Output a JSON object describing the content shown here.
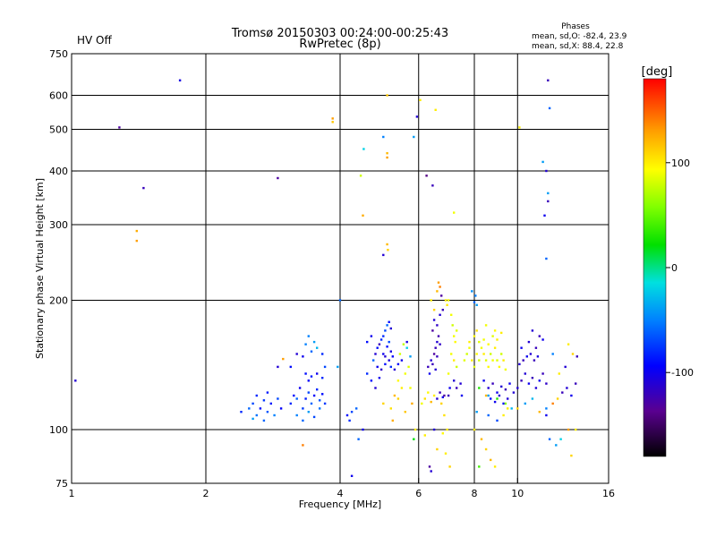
{
  "header": {
    "title_line1": "Tromsø 20150303 00:24:00-00:25:43",
    "title_line2": "RwPretec (8p)",
    "status": "HV Off",
    "status_color": "#cc0000",
    "phase_title": "Phases",
    "phase_o": "mean, sd,O: -82.4, 23.9",
    "phase_x": "mean, sd,X:  88.4, 22.8"
  },
  "colorbar": {
    "label": "[deg]",
    "range": [
      -180,
      180
    ],
    "ticks": [
      {
        "value": 100,
        "label": "100"
      },
      {
        "value": 0,
        "label": "0"
      },
      {
        "value": -100,
        "label": "-100"
      }
    ]
  },
  "chart_data": {
    "type": "scatter",
    "xlabel": "Frequency [MHz]",
    "ylabel": "Stationary phase Virtual Height [km]",
    "x_scale": "log",
    "y_scale": "log",
    "xlim": [
      1,
      16
    ],
    "ylim": [
      75,
      750
    ],
    "x_ticks": [
      {
        "value": 1,
        "label": "1"
      },
      {
        "value": 2,
        "label": "2"
      },
      {
        "value": 4,
        "label": "4"
      },
      {
        "value": 6,
        "label": "6"
      },
      {
        "value": 8,
        "label": "8"
      },
      {
        "value": 10,
        "label": "10"
      },
      {
        "value": 16,
        "label": "16"
      }
    ],
    "y_ticks": [
      {
        "value": 75,
        "label": "75"
      },
      {
        "value": 100,
        "label": "100"
      },
      {
        "value": 200,
        "label": "200"
      },
      {
        "value": 300,
        "label": "300"
      },
      {
        "value": 400,
        "label": "400"
      },
      {
        "value": 500,
        "label": "500"
      },
      {
        "value": 600,
        "label": "600"
      },
      {
        "value": 750,
        "label": "750"
      }
    ],
    "x_grid": [
      2,
      4,
      6,
      8,
      10
    ],
    "y_grid": [
      100,
      200,
      300,
      400,
      500,
      600
    ],
    "points": [
      [
        1.02,
        130,
        -110
      ],
      [
        1.28,
        505,
        -130
      ],
      [
        1.45,
        365,
        -120
      ],
      [
        1.75,
        650,
        -105
      ],
      [
        1.4,
        290,
        125
      ],
      [
        1.4,
        275,
        130
      ],
      [
        2.9,
        385,
        -130
      ],
      [
        3.85,
        530,
        130
      ],
      [
        3.85,
        520,
        115
      ],
      [
        4.52,
        450,
        -20
      ],
      [
        4.45,
        390,
        80
      ],
      [
        4.5,
        315,
        125
      ],
      [
        5.1,
        600,
        115
      ],
      [
        5.1,
        440,
        120
      ],
      [
        5.1,
        430,
        130
      ],
      [
        5.0,
        480,
        -50
      ],
      [
        5.1,
        270,
        120
      ],
      [
        5.12,
        262,
        110
      ],
      [
        5.0,
        255,
        -110
      ],
      [
        5.85,
        480,
        -40
      ],
      [
        5.95,
        535,
        -110
      ],
      [
        6.05,
        585,
        100
      ],
      [
        6.25,
        390,
        -140
      ],
      [
        6.45,
        370,
        -120
      ],
      [
        6.55,
        555,
        100
      ],
      [
        7.2,
        320,
        90
      ],
      [
        10.1,
        505,
        100
      ],
      [
        11.7,
        650,
        -120
      ],
      [
        11.8,
        560,
        -60
      ],
      [
        11.4,
        420,
        -40
      ],
      [
        11.6,
        400,
        -110
      ],
      [
        11.7,
        355,
        -40
      ],
      [
        11.7,
        340,
        -120
      ],
      [
        11.5,
        315,
        -100
      ],
      [
        11.6,
        250,
        -60
      ],
      [
        2.4,
        110,
        -80
      ],
      [
        2.5,
        112,
        -60
      ],
      [
        2.55,
        115,
        -70
      ],
      [
        2.6,
        108,
        -55
      ],
      [
        2.65,
        112,
        -90
      ],
      [
        2.7,
        117,
        -75
      ],
      [
        2.75,
        110,
        -65
      ],
      [
        2.8,
        115,
        -85
      ],
      [
        2.85,
        108,
        -50
      ],
      [
        2.6,
        120,
        -80
      ],
      [
        2.7,
        105,
        -60
      ],
      [
        2.9,
        118,
        -70
      ],
      [
        2.95,
        112,
        -95
      ],
      [
        2.55,
        106,
        -40
      ],
      [
        2.75,
        122,
        -85
      ],
      [
        3.1,
        115,
        -80
      ],
      [
        3.15,
        120,
        -90
      ],
      [
        3.2,
        118,
        -60
      ],
      [
        3.25,
        125,
        -100
      ],
      [
        3.3,
        112,
        -75
      ],
      [
        3.35,
        118,
        -85
      ],
      [
        3.4,
        122,
        -70
      ],
      [
        3.45,
        115,
        -60
      ],
      [
        3.5,
        120,
        -95
      ],
      [
        3.55,
        124,
        -80
      ],
      [
        3.6,
        117,
        -65
      ],
      [
        3.65,
        121,
        -90
      ],
      [
        3.7,
        115,
        -75
      ],
      [
        3.2,
        108,
        -50
      ],
      [
        3.3,
        105,
        -60
      ],
      [
        3.4,
        110,
        -40
      ],
      [
        3.5,
        107,
        -70
      ],
      [
        3.6,
        112,
        -55
      ],
      [
        3.35,
        135,
        -90
      ],
      [
        3.45,
        133,
        -85
      ],
      [
        3.55,
        135,
        -100
      ],
      [
        3.65,
        132,
        -80
      ],
      [
        3.4,
        130,
        -95
      ],
      [
        3.4,
        165,
        -50
      ],
      [
        3.5,
        160,
        -40
      ],
      [
        3.45,
        152,
        -60
      ],
      [
        3.55,
        155,
        -30
      ],
      [
        3.3,
        148,
        -100
      ],
      [
        3.35,
        158,
        -50
      ],
      [
        3.65,
        150,
        -80
      ],
      [
        3.2,
        150,
        -110
      ],
      [
        3.1,
        140,
        -90
      ],
      [
        3.7,
        140,
        -70
      ],
      [
        3.3,
        92,
        140
      ],
      [
        2.9,
        140,
        -110
      ],
      [
        2.98,
        146,
        130
      ],
      [
        4.0,
        200,
        -60
      ],
      [
        3.95,
        140,
        -40
      ],
      [
        4.15,
        108,
        -90
      ],
      [
        4.2,
        105,
        -80
      ],
      [
        4.25,
        110,
        -70
      ],
      [
        4.35,
        112,
        -60
      ],
      [
        4.25,
        78,
        -100
      ],
      [
        4.4,
        95,
        -60
      ],
      [
        4.5,
        100,
        -100
      ],
      [
        4.8,
        150,
        -110
      ],
      [
        4.85,
        155,
        -90
      ],
      [
        4.9,
        158,
        -120
      ],
      [
        4.95,
        162,
        -80
      ],
      [
        5.0,
        150,
        -100
      ],
      [
        5.05,
        148,
        -110
      ],
      [
        5.1,
        156,
        -90
      ],
      [
        5.15,
        160,
        -70
      ],
      [
        5.2,
        152,
        -105
      ],
      [
        5.25,
        148,
        -95
      ],
      [
        4.75,
        145,
        -60
      ],
      [
        4.85,
        140,
        -100
      ],
      [
        4.95,
        138,
        -115
      ],
      [
        5.05,
        142,
        -90
      ],
      [
        5.15,
        145,
        -105
      ],
      [
        5.2,
        140,
        -80
      ],
      [
        5.3,
        138,
        -110
      ],
      [
        5.4,
        142,
        -95
      ],
      [
        4.7,
        130,
        -90
      ],
      [
        4.8,
        125,
        -110
      ],
      [
        4.9,
        132,
        -100
      ],
      [
        4.6,
        135,
        -80
      ],
      [
        5.05,
        170,
        -70
      ],
      [
        5.1,
        175,
        -60
      ],
      [
        5.15,
        178,
        -90
      ],
      [
        5.2,
        172,
        -110
      ],
      [
        5.0,
        165,
        -80
      ],
      [
        4.7,
        165,
        -100
      ],
      [
        4.6,
        160,
        -90
      ],
      [
        5.3,
        120,
        120
      ],
      [
        5.4,
        118,
        110
      ],
      [
        5.5,
        125,
        100
      ],
      [
        5.0,
        115,
        110
      ],
      [
        5.2,
        112,
        105
      ],
      [
        5.4,
        130,
        95
      ],
      [
        5.6,
        135,
        90
      ],
      [
        5.7,
        140,
        85
      ],
      [
        5.45,
        150,
        80
      ],
      [
        5.55,
        158,
        75
      ],
      [
        5.65,
        155,
        -20
      ],
      [
        5.75,
        148,
        -40
      ],
      [
        5.5,
        145,
        -100
      ],
      [
        5.6,
        110,
        115
      ],
      [
        5.8,
        115,
        125
      ],
      [
        5.25,
        105,
        125
      ],
      [
        5.9,
        100,
        100
      ],
      [
        5.85,
        95,
        20
      ],
      [
        5.75,
        125,
        90
      ],
      [
        5.65,
        160,
        -105
      ],
      [
        6.1,
        115,
        90
      ],
      [
        6.2,
        118,
        105
      ],
      [
        6.3,
        122,
        95
      ],
      [
        6.4,
        116,
        120
      ],
      [
        6.5,
        120,
        100
      ],
      [
        6.6,
        118,
        -110
      ],
      [
        6.7,
        122,
        -120
      ],
      [
        6.8,
        119,
        -100
      ],
      [
        6.3,
        140,
        -120
      ],
      [
        6.4,
        145,
        -110
      ],
      [
        6.5,
        150,
        -130
      ],
      [
        6.55,
        155,
        -120
      ],
      [
        6.6,
        160,
        -110
      ],
      [
        6.65,
        165,
        -125
      ],
      [
        6.7,
        158,
        -115
      ],
      [
        6.35,
        135,
        -100
      ],
      [
        6.45,
        142,
        -120
      ],
      [
        6.55,
        138,
        -110
      ],
      [
        6.6,
        148,
        -120
      ],
      [
        6.45,
        170,
        -130
      ],
      [
        6.5,
        180,
        -110
      ],
      [
        6.6,
        175,
        -115
      ],
      [
        6.7,
        185,
        -110
      ],
      [
        6.8,
        190,
        -120
      ],
      [
        6.9,
        200,
        100
      ],
      [
        6.95,
        195,
        100
      ],
      [
        7.0,
        200,
        90
      ],
      [
        7.1,
        185,
        90
      ],
      [
        7.15,
        175,
        80
      ],
      [
        7.2,
        165,
        90
      ],
      [
        7.25,
        160,
        95
      ],
      [
        7.3,
        170,
        85
      ],
      [
        7.1,
        150,
        90
      ],
      [
        7.2,
        145,
        100
      ],
      [
        7.3,
        140,
        80
      ],
      [
        7.0,
        135,
        90
      ],
      [
        7.2,
        130,
        -110
      ],
      [
        7.3,
        125,
        -120
      ],
      [
        7.45,
        128,
        -110
      ],
      [
        7.5,
        120,
        -100
      ],
      [
        6.6,
        210,
        120
      ],
      [
        6.65,
        220,
        130
      ],
      [
        6.7,
        215,
        140
      ],
      [
        6.75,
        205,
        -130
      ],
      [
        6.5,
        190,
        110
      ],
      [
        6.4,
        200,
        100
      ],
      [
        6.85,
        108,
        105
      ],
      [
        6.95,
        100,
        100
      ],
      [
        6.8,
        98,
        95
      ],
      [
        6.5,
        100,
        -110
      ],
      [
        6.2,
        97,
        100
      ],
      [
        6.35,
        82,
        -130
      ],
      [
        6.4,
        80,
        -110
      ],
      [
        6.6,
        90,
        110
      ],
      [
        6.9,
        88,
        100
      ],
      [
        7.05,
        82,
        110
      ],
      [
        6.75,
        115,
        110
      ],
      [
        6.85,
        120,
        -130
      ],
      [
        7.0,
        120,
        -120
      ],
      [
        7.05,
        125,
        -100
      ],
      [
        7.6,
        145,
        85
      ],
      [
        7.7,
        150,
        80
      ],
      [
        7.8,
        155,
        90
      ],
      [
        7.9,
        145,
        100
      ],
      [
        8.0,
        140,
        85
      ],
      [
        8.1,
        150,
        95
      ],
      [
        8.2,
        145,
        80
      ],
      [
        8.3,
        155,
        90
      ],
      [
        8.4,
        150,
        100
      ],
      [
        8.5,
        145,
        85
      ],
      [
        8.6,
        140,
        95
      ],
      [
        8.7,
        150,
        80
      ],
      [
        8.8,
        145,
        90
      ],
      [
        8.9,
        155,
        100
      ],
      [
        9.0,
        145,
        85
      ],
      [
        9.1,
        140,
        95
      ],
      [
        9.2,
        150,
        80
      ],
      [
        9.3,
        145,
        100
      ],
      [
        9.4,
        138,
        90
      ],
      [
        7.8,
        160,
        100
      ],
      [
        8.0,
        165,
        95
      ],
      [
        8.2,
        160,
        85
      ],
      [
        8.4,
        162,
        90
      ],
      [
        8.6,
        158,
        95
      ],
      [
        8.8,
        165,
        85
      ],
      [
        9.0,
        162,
        100
      ],
      [
        8.1,
        170,
        105
      ],
      [
        8.5,
        175,
        90
      ],
      [
        8.9,
        170,
        95
      ],
      [
        9.2,
        168,
        100
      ],
      [
        8.4,
        130,
        -100
      ],
      [
        8.6,
        125,
        -110
      ],
      [
        8.8,
        128,
        -120
      ],
      [
        9.0,
        122,
        -100
      ],
      [
        9.2,
        126,
        -110
      ],
      [
        9.4,
        124,
        -120
      ],
      [
        9.6,
        128,
        -100
      ],
      [
        9.8,
        122,
        -110
      ],
      [
        8.5,
        120,
        120
      ],
      [
        8.7,
        118,
        -90
      ],
      [
        8.9,
        116,
        -100
      ],
      [
        9.1,
        120,
        -110
      ],
      [
        9.3,
        115,
        -95
      ],
      [
        9.5,
        118,
        -110
      ],
      [
        8.2,
        125,
        30
      ],
      [
        8.6,
        120,
        -40
      ],
      [
        9.0,
        118,
        30
      ],
      [
        9.4,
        115,
        60
      ],
      [
        9.7,
        112,
        -30
      ],
      [
        8.0,
        198,
        -60
      ],
      [
        8.05,
        205,
        -50
      ],
      [
        8.1,
        195,
        -40
      ],
      [
        7.9,
        210,
        -45
      ],
      [
        8.0,
        100,
        100
      ],
      [
        8.3,
        95,
        120
      ],
      [
        8.5,
        90,
        110
      ],
      [
        8.7,
        85,
        120
      ],
      [
        8.9,
        82,
        100
      ],
      [
        8.2,
        82,
        40
      ],
      [
        8.1,
        110,
        -40
      ],
      [
        8.6,
        108,
        -60
      ],
      [
        9.0,
        105,
        -70
      ],
      [
        9.3,
        108,
        100
      ],
      [
        9.5,
        112,
        100
      ],
      [
        10.0,
        125,
        -110
      ],
      [
        10.2,
        130,
        -120
      ],
      [
        10.4,
        135,
        -110
      ],
      [
        10.6,
        128,
        -100
      ],
      [
        10.8,
        132,
        -120
      ],
      [
        11.0,
        125,
        -110
      ],
      [
        11.2,
        130,
        -100
      ],
      [
        11.4,
        135,
        -120
      ],
      [
        11.6,
        128,
        -115
      ],
      [
        10.1,
        142,
        -110
      ],
      [
        10.3,
        145,
        -120
      ],
      [
        10.5,
        148,
        -100
      ],
      [
        10.7,
        150,
        -110
      ],
      [
        10.9,
        145,
        -120
      ],
      [
        11.1,
        148,
        -105
      ],
      [
        10.2,
        155,
        -100
      ],
      [
        10.6,
        160,
        -110
      ],
      [
        11.0,
        155,
        -120
      ],
      [
        11.4,
        162,
        -100
      ],
      [
        10.8,
        170,
        -110
      ],
      [
        11.2,
        165,
        -120
      ],
      [
        10.0,
        112,
        110
      ],
      [
        10.4,
        115,
        -40
      ],
      [
        10.8,
        118,
        -30
      ],
      [
        11.2,
        110,
        120
      ],
      [
        11.6,
        112,
        -50
      ],
      [
        12.0,
        115,
        140
      ],
      [
        12.3,
        118,
        110
      ],
      [
        12.6,
        122,
        -120
      ],
      [
        12.9,
        125,
        -110
      ],
      [
        13.2,
        120,
        -100
      ],
      [
        13.5,
        128,
        -120
      ],
      [
        13.0,
        100,
        130
      ],
      [
        13.5,
        100,
        100
      ],
      [
        12.5,
        95,
        -20
      ],
      [
        13.2,
        87,
        110
      ],
      [
        12.2,
        92,
        -40
      ],
      [
        11.8,
        95,
        -60
      ],
      [
        11.6,
        108,
        -100
      ],
      [
        12.8,
        140,
        -110
      ],
      [
        13.3,
        150,
        110
      ],
      [
        13.6,
        148,
        -120
      ],
      [
        12.4,
        135,
        100
      ],
      [
        13.0,
        158,
        100
      ],
      [
        12.0,
        150,
        -50
      ]
    ]
  }
}
